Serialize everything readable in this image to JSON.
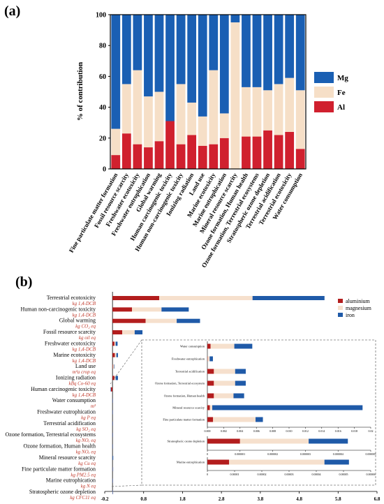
{
  "panels": {
    "a": "(a)",
    "b": "(b)"
  },
  "colors": {
    "al": "#d0202e",
    "fe": "#f6dfc7",
    "mg": "#1a5fb3",
    "ironB": "#1f5aa8",
    "magB": "#f6e0cd",
    "alB": "#b31d1d"
  },
  "chart_data": [
    {
      "type": "bar",
      "stacked": true,
      "ylabel": "% of contribution",
      "ylim": [
        0,
        100
      ],
      "yticks": [
        0,
        20,
        40,
        60,
        80,
        100
      ],
      "legend": {
        "placement": "right",
        "entries": [
          "Mg",
          "Fe",
          "Al"
        ]
      },
      "categories": [
        "Fine particulate matter formation",
        "Fossil resource scarcity",
        "Freshwater ecotoxicity",
        "Freshwater eutrophication",
        "Global warming",
        "Human carcinogenic toxicity",
        "Human non-carcinogenic toxicity",
        "Ionizing radiation",
        "Land use",
        "Marine ecotoxicity",
        "Marine eutrophication",
        "Mineral resource scarcity",
        "Ozone formation, Human health",
        "Ozone formation, Terrestrial ecosystems",
        "Stratospheric ozone depletion",
        "Terrestrial acidification",
        "Terrestrial ecotoxicity",
        "Water consumption"
      ],
      "series": [
        {
          "name": "Al",
          "values": [
            9,
            23,
            16,
            14,
            18,
            31,
            16,
            22,
            15,
            16,
            20,
            0,
            21,
            21,
            25,
            22,
            24,
            13
          ]
        },
        {
          "name": "Fe",
          "values": [
            17,
            32,
            48,
            33,
            32,
            0,
            39,
            21,
            19,
            48,
            16,
            95,
            32,
            32,
            26,
            33,
            35,
            38
          ]
        },
        {
          "name": "Mg",
          "values": [
            74,
            45,
            36,
            53,
            50,
            69,
            45,
            57,
            66,
            36,
            64,
            5,
            47,
            47,
            49,
            45,
            41,
            49
          ]
        }
      ]
    },
    {
      "type": "bar",
      "orientation": "horizontal",
      "stacked": true,
      "xlim": [
        -0.2,
        6.8
      ],
      "xticks": [
        "-0.2",
        "0.8",
        "1.8",
        "2.8",
        "3.8",
        "4.8",
        "5.8",
        "6.8"
      ],
      "legend": {
        "placement": "top-right",
        "entries": [
          "aluminium",
          "magnesium",
          "iron"
        ]
      },
      "categories": [
        {
          "name": "Terrestrial ecotoxicity",
          "unit": "kg 1,4-DCB"
        },
        {
          "name": "Human non-carcinogenic toxicity",
          "unit": "kg 1,4-DCB"
        },
        {
          "name": "Global warming",
          "unit": "kg CO₂ eq"
        },
        {
          "name": "Fossil resource scarcity",
          "unit": "kg oil eq"
        },
        {
          "name": "Freshwater ecotoxicity",
          "unit": "kg 1,4-DCB"
        },
        {
          "name": "Marine ecotoxicity",
          "unit": "kg 1,4-DCB"
        },
        {
          "name": "Land use",
          "unit": "m²a crop eq"
        },
        {
          "name": "Ionizing radiation",
          "unit": "kBq Co-60 eq"
        },
        {
          "name": "Human carcinogenic toxicity",
          "unit": "kg 1,4-DCB"
        },
        {
          "name": "Water consumption",
          "unit": "m³"
        },
        {
          "name": "Freshwater eutrophication",
          "unit": "kg P eq"
        },
        {
          "name": "Terrestrial acidification",
          "unit": "kg SO₂ eq"
        },
        {
          "name": "Ozone formation, Terrestrial ecosystems",
          "unit": "kg NOₓ eq"
        },
        {
          "name": "Ozone formation, Human health",
          "unit": "kg NOₓ eq"
        },
        {
          "name": "Mineral resource scarcity",
          "unit": "kg Cu eq"
        },
        {
          "name": "Fine particulate matter formation",
          "unit": "kg PM2.5 eq"
        },
        {
          "name": "Marine eutrophication",
          "unit": "kg N eq"
        },
        {
          "name": "Stratospheric ozone depletion",
          "unit": "kg CFC11 eq"
        }
      ],
      "series": [
        {
          "name": "aluminium",
          "values": [
            1.2,
            0.5,
            0.85,
            0.25,
            0.05,
            0.06,
            0.01,
            0.05,
            -0.04,
            0.0004,
            3e-05,
            0.0008,
            0.0008,
            0.0008,
            0.0003,
            0.0007,
            8e-06,
            1e-06
          ]
        },
        {
          "name": "magnesium",
          "values": [
            2.4,
            0.76,
            0.8,
            0.32,
            0.03,
            0.04,
            0.03,
            0.03,
            0,
            0.0029,
            0.00025,
            0.0026,
            0.0026,
            0.0024,
            0.0003,
            0.0052,
            3.5e-05,
            2.1e-06
          ]
        },
        {
          "name": "iron",
          "values": [
            1.85,
            0.7,
            0.6,
            0.2,
            0.05,
            0.04,
            0.01,
            0.06,
            -0.01,
            0.0022,
            0.0004,
            0.0013,
            0.0013,
            0.0013,
            0.0184,
            0.0009,
            9e-06,
            1.2e-06
          ]
        }
      ],
      "inset": {
        "groups": [
          {
            "categories": [
              "Water consumption",
              "Freshwater eutrophication",
              "Terrestrial acidification",
              "Ozone formation, Terrestrial ecosystem",
              "Ozone formation, Human health",
              "Mineral resource scarcity",
              "Fine particulate matter formation"
            ],
            "xlim": [
              0,
              0.02
            ],
            "xticks": [
              "0.000",
              "0.002",
              "0.004",
              "0.006",
              "0.008",
              "0.010",
              "0.012",
              "0.014",
              "0.016",
              "0.018",
              "0.02"
            ],
            "refs": [
              9,
              10,
              11,
              12,
              13,
              14,
              15
            ]
          },
          {
            "categories": [
              "Stratospheric ozone depletion"
            ],
            "xlim": [
              0,
              5e-06
            ],
            "xticks": [
              "0",
              "0.000001",
              "0.000002",
              "0.000003",
              "0.000004",
              "0.000005"
            ],
            "refs": [
              17
            ]
          },
          {
            "categories": [
              "Marine eutrophication"
            ],
            "xlim": [
              0,
              6e-05
            ],
            "xticks": [
              "0",
              "0.00001",
              "0.00002",
              "0.00003",
              "0.00004",
              "0.00005",
              "0.00006"
            ],
            "refs": [
              16
            ]
          }
        ]
      }
    }
  ]
}
